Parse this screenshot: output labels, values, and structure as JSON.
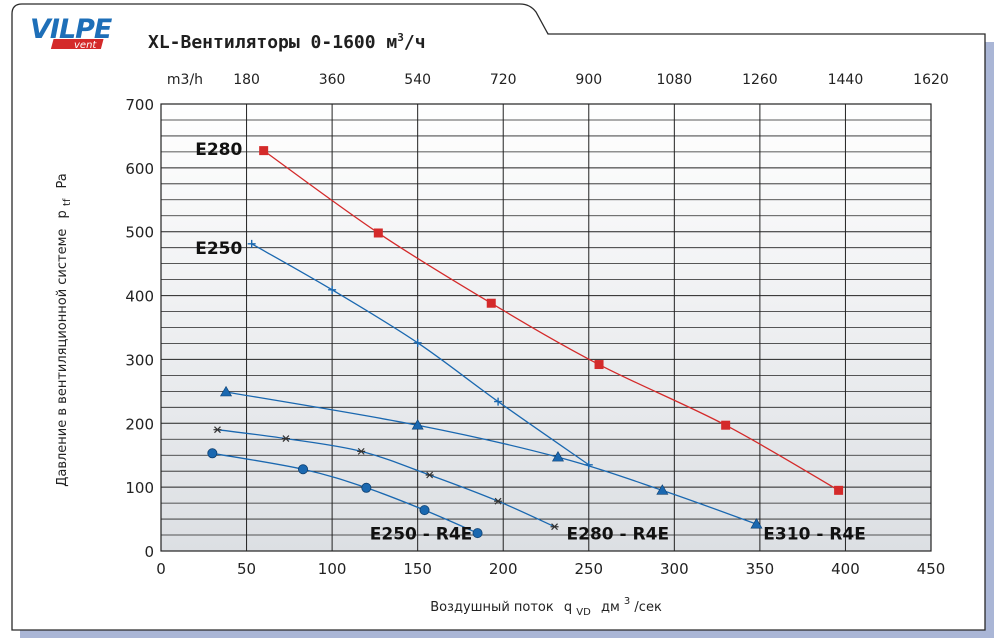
{
  "header": {
    "brand_main": "VILPE",
    "brand_sub": "vent",
    "title": "XL-Вентиляторы 0-1600 м",
    "title_sup": "3",
    "title_tail": "/ч"
  },
  "colors": {
    "accent": "#1e6fb8",
    "red_series": "#d42a2a",
    "blue_series": "#1a68b0",
    "frame_shadow": "#aab6d6"
  },
  "chart_data": {
    "type": "line",
    "xlabel": "Воздушный поток",
    "xlabel_sym": "q",
    "xlabel_sub": "VD",
    "xlabel_unit": "дм",
    "xlabel_unit_sup": "3",
    "xlabel_unit_tail": "/сек",
    "ylabel": "Давление в вентиляционной системе",
    "ylabel_sym": "p",
    "ylabel_sub": "tf",
    "ylabel_unit": "Pa",
    "x_ticks": [
      "0",
      "50",
      "100",
      "150",
      "200",
      "250",
      "300",
      "350",
      "400",
      "450"
    ],
    "y_ticks": [
      "0",
      "100",
      "200",
      "300",
      "400",
      "500",
      "600",
      "700"
    ],
    "top_axis_label": "m3/h",
    "top_ticks": [
      "180",
      "360",
      "540",
      "720",
      "900",
      "1080",
      "1260",
      "1440",
      "1620"
    ],
    "xlim": [
      0,
      450
    ],
    "ylim": [
      0,
      700
    ],
    "grid": true,
    "series": [
      {
        "name": "E280",
        "marker": "square",
        "color": "#d42a2a",
        "x": [
          60,
          127,
          193,
          256,
          330,
          396
        ],
        "y": [
          627,
          498,
          388,
          292,
          197,
          95
        ]
      },
      {
        "name": "E250",
        "marker": "plus",
        "color": "#1a68b0",
        "x": [
          53,
          100,
          150,
          197,
          250
        ],
        "y": [
          481,
          409,
          326,
          234,
          135
        ]
      },
      {
        "name": "E310 - R4E",
        "marker": "triangle",
        "color": "#1a68b0",
        "x": [
          38,
          150,
          232,
          293,
          348
        ],
        "y": [
          249,
          197,
          147,
          95,
          42
        ]
      },
      {
        "name": "E280 - R4E",
        "marker": "star",
        "color": "#1a68b0",
        "x": [
          33,
          73,
          117,
          157,
          197,
          230
        ],
        "y": [
          190,
          176,
          156,
          119,
          78,
          38
        ]
      },
      {
        "name": "E250 - R4E",
        "marker": "circle",
        "color": "#1a68b0",
        "x": [
          30,
          83,
          120,
          154,
          185
        ],
        "y": [
          153,
          128,
          99,
          64,
          28
        ]
      }
    ]
  }
}
